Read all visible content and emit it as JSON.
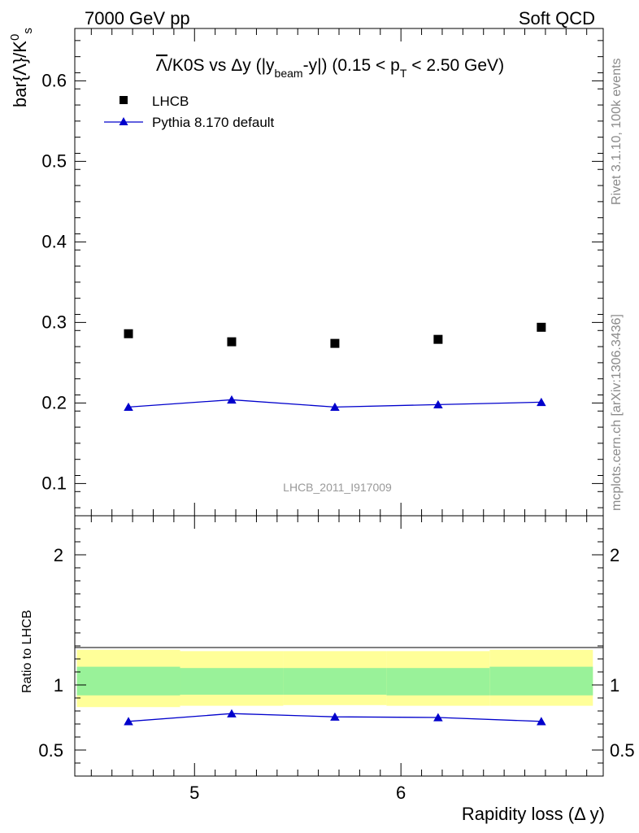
{
  "header": {
    "left": "7000 GeV pp",
    "right": "Soft QCD"
  },
  "side_labels": {
    "rivet": "Rivet 3.1.10,  100k events",
    "mcplots": "mcplots.cern.ch [arXiv:1306.3436]"
  },
  "watermark": "LHCB_2011_I917009",
  "chart_data": [
    {
      "type": "scatter",
      "panel": "main",
      "title": "Λ̅/K0S vs Δy (|y_beam-y|) (0.15 < p_T < 2.50 GeV)",
      "title_parts": {
        "lambda_bar": "Λ",
        "rest": "/K0S vs Δy (|y",
        "sub_beam": "beam",
        "mid": "-y|) (0.15 < p",
        "sub_t": "T",
        "end": " < 2.50 GeV)"
      },
      "ylabel": "bar{Λ}/K⁰ₛ",
      "ylabel_parts": {
        "base": "bar{Λ}/K",
        "sup": "0",
        "sub": "s"
      },
      "xlim": [
        4.42,
        6.98
      ],
      "ylim": [
        0.06,
        0.665
      ],
      "yticks": [
        0.1,
        0.2,
        0.3,
        0.4,
        0.5,
        0.6
      ],
      "ytick_labels": [
        "0.1",
        "0.2",
        "0.3",
        "0.4",
        "0.5",
        "0.6"
      ],
      "legend_position": "top-left",
      "series": [
        {
          "name": "LHCB",
          "marker": "square",
          "color": "#000000",
          "x": [
            4.68,
            5.18,
            5.68,
            6.18,
            6.68
          ],
          "y": [
            0.286,
            0.276,
            0.274,
            0.279,
            0.294
          ]
        },
        {
          "name": "Pythia 8.170 default",
          "marker": "triangle",
          "line": true,
          "color": "#0000cc",
          "x": [
            4.68,
            5.18,
            5.68,
            6.18,
            6.68
          ],
          "y": [
            0.195,
            0.204,
            0.195,
            0.198,
            0.201
          ]
        }
      ]
    },
    {
      "type": "line",
      "panel": "ratio",
      "xlabel": "Rapidity loss (Δ y)",
      "ylabel": "Ratio to LHCB",
      "xlim": [
        4.42,
        6.98
      ],
      "ylim": [
        0.3,
        2.3
      ],
      "xticks": [
        5,
        6
      ],
      "xtick_labels": [
        "5",
        "6"
      ],
      "yticks": [
        0.5,
        1,
        2
      ],
      "ytick_labels": [
        "0.5",
        "1",
        "2"
      ],
      "bands": {
        "x_edges": [
          4.43,
          4.93,
          5.43,
          5.93,
          6.43,
          6.93
        ],
        "yellow": {
          "color": "#ffff99",
          "low": [
            0.83,
            0.84,
            0.845,
            0.84,
            0.84
          ],
          "high": [
            1.27,
            1.26,
            1.26,
            1.26,
            1.27
          ]
        },
        "green": {
          "color": "#99f299",
          "low": [
            0.92,
            0.925,
            0.925,
            0.92,
            0.92
          ],
          "high": [
            1.14,
            1.13,
            1.13,
            1.13,
            1.14
          ]
        }
      },
      "series": [
        {
          "name": "Pythia 8.170 default",
          "marker": "triangle",
          "color": "#0000cc",
          "x": [
            4.68,
            5.18,
            5.68,
            6.18,
            6.68
          ],
          "y": [
            0.72,
            0.78,
            0.755,
            0.75,
            0.72
          ]
        }
      ]
    }
  ]
}
